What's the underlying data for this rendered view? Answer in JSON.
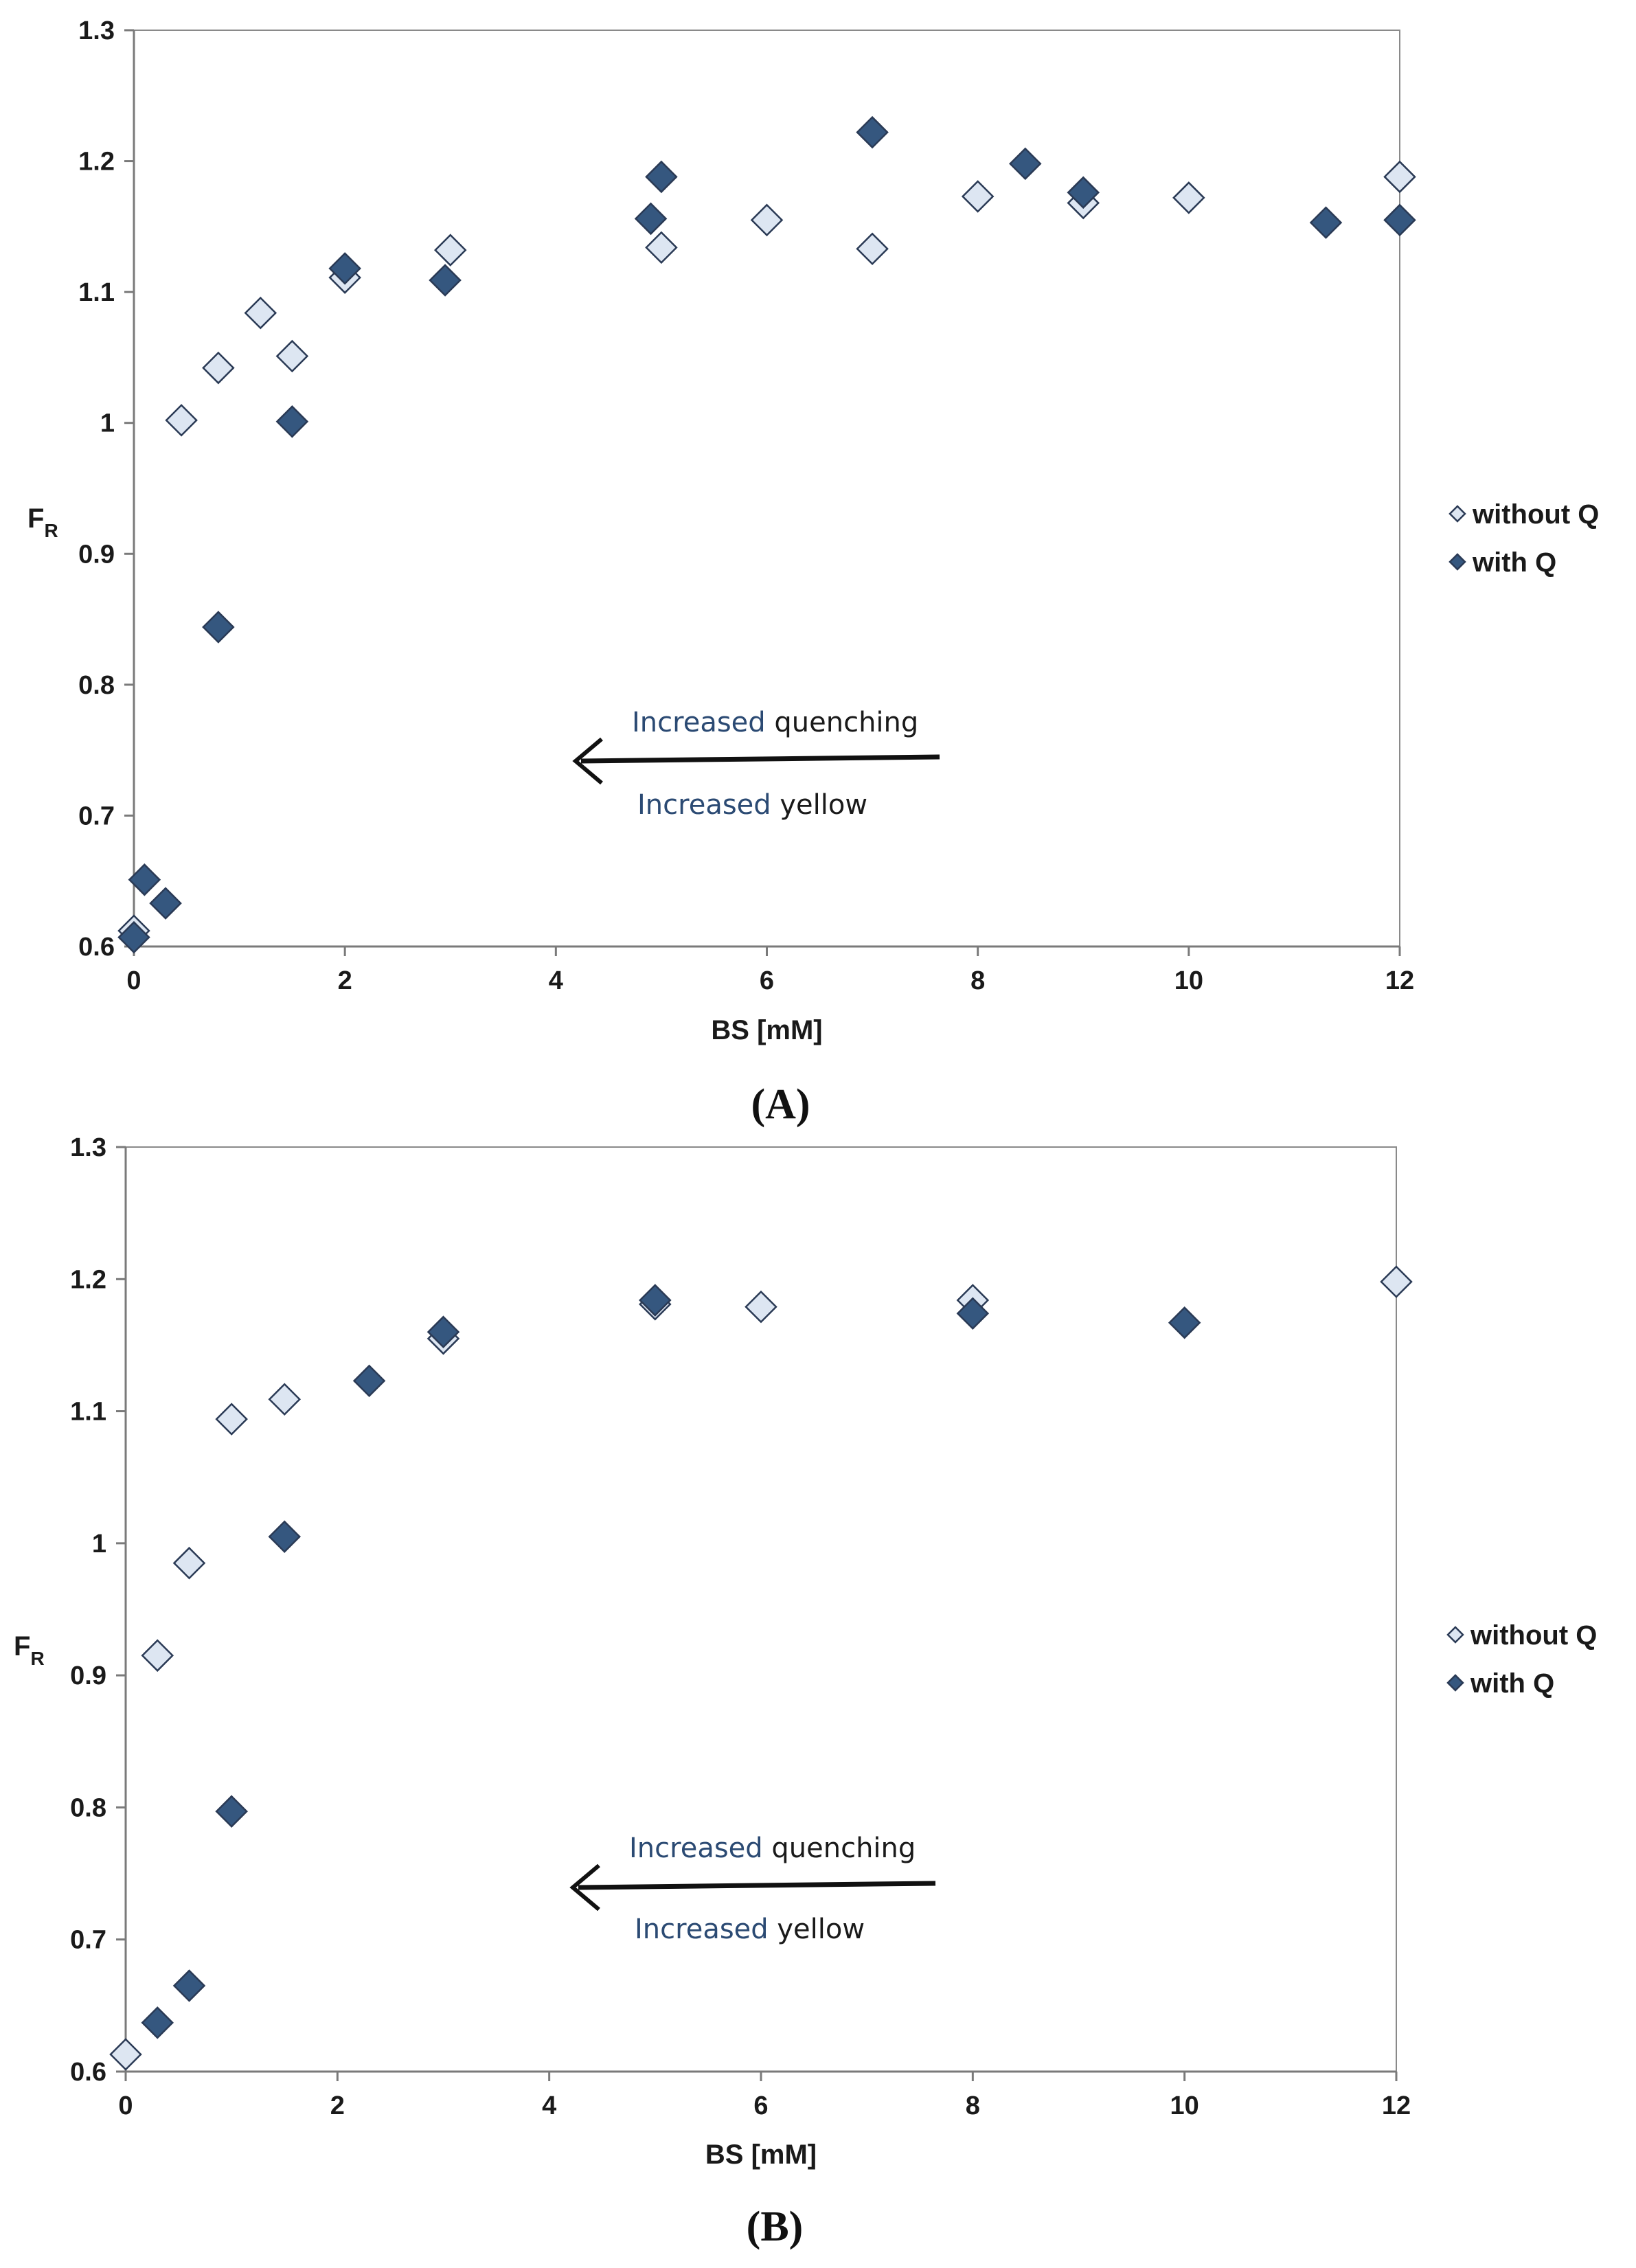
{
  "chart_data": [
    {
      "type": "scatter",
      "panel_label": "(A)",
      "xlabel": "BS [mM]",
      "ylabel": "F",
      "ylabel_sub": "R",
      "xlim": [
        0,
        12
      ],
      "ylim": [
        0.6,
        1.3
      ],
      "xticks": [
        0,
        2,
        4,
        6,
        8,
        10,
        12
      ],
      "yticks": [
        0.6,
        0.7,
        0.8,
        0.9,
        1,
        1.1,
        1.2,
        1.3
      ],
      "series": [
        {
          "name": "without Q",
          "color": "#dde6f2",
          "points": [
            [
              0,
              0.612
            ],
            [
              0.45,
              1.002
            ],
            [
              0.8,
              1.042
            ],
            [
              1.2,
              1.084
            ],
            [
              1.5,
              1.051
            ],
            [
              2,
              1.111
            ],
            [
              3,
              1.132
            ],
            [
              5,
              1.134
            ],
            [
              6,
              1.155
            ],
            [
              7,
              1.133
            ],
            [
              8,
              1.173
            ],
            [
              9,
              1.168
            ],
            [
              10,
              1.172
            ],
            [
              12,
              1.188
            ]
          ]
        },
        {
          "name": "with Q",
          "color": "#35577f",
          "points": [
            [
              0,
              0.607
            ],
            [
              0.1,
              0.651
            ],
            [
              0.3,
              0.633
            ],
            [
              0.8,
              0.844
            ],
            [
              1.5,
              1.001
            ],
            [
              2,
              1.118
            ],
            [
              2.95,
              1.109
            ],
            [
              4.9,
              1.156
            ],
            [
              5,
              1.188
            ],
            [
              7,
              1.222
            ],
            [
              8.45,
              1.198
            ],
            [
              9,
              1.176
            ],
            [
              11.3,
              1.153
            ],
            [
              12,
              1.155
            ]
          ]
        }
      ],
      "annotation": {
        "line1_highlight": "Increased",
        "line1_rest": " quenching",
        "line2_highlight": "Increased",
        "line2_rest": " yellow"
      }
    },
    {
      "type": "scatter",
      "panel_label": "(B)",
      "xlabel": "BS [mM]",
      "ylabel": "F",
      "ylabel_sub": "R",
      "xlim": [
        0,
        12
      ],
      "ylim": [
        0.6,
        1.3
      ],
      "xticks": [
        0,
        2,
        4,
        6,
        8,
        10,
        12
      ],
      "yticks": [
        0.6,
        0.7,
        0.8,
        0.9,
        1,
        1.1,
        1.2,
        1.3
      ],
      "series": [
        {
          "name": "without Q",
          "color": "#dde6f2",
          "points": [
            [
              0,
              0.613
            ],
            [
              0.3,
              0.915
            ],
            [
              0.6,
              0.985
            ],
            [
              1,
              1.094
            ],
            [
              1.5,
              1.109
            ],
            [
              3,
              1.155
            ],
            [
              5,
              1.181
            ],
            [
              6,
              1.179
            ],
            [
              8,
              1.184
            ],
            [
              12,
              1.198
            ]
          ]
        },
        {
          "name": "with Q",
          "color": "#35577f",
          "points": [
            [
              0.3,
              0.637
            ],
            [
              0.6,
              0.665
            ],
            [
              1,
              0.797
            ],
            [
              1.5,
              1.005
            ],
            [
              2.3,
              1.123
            ],
            [
              3,
              1.16
            ],
            [
              5,
              1.184
            ],
            [
              8,
              1.174
            ],
            [
              10,
              1.167
            ]
          ]
        }
      ],
      "annotation": {
        "line1_highlight": "Increased",
        "line1_rest": " quenching",
        "line2_highlight": "Increased",
        "line2_rest": " yellow"
      }
    }
  ]
}
